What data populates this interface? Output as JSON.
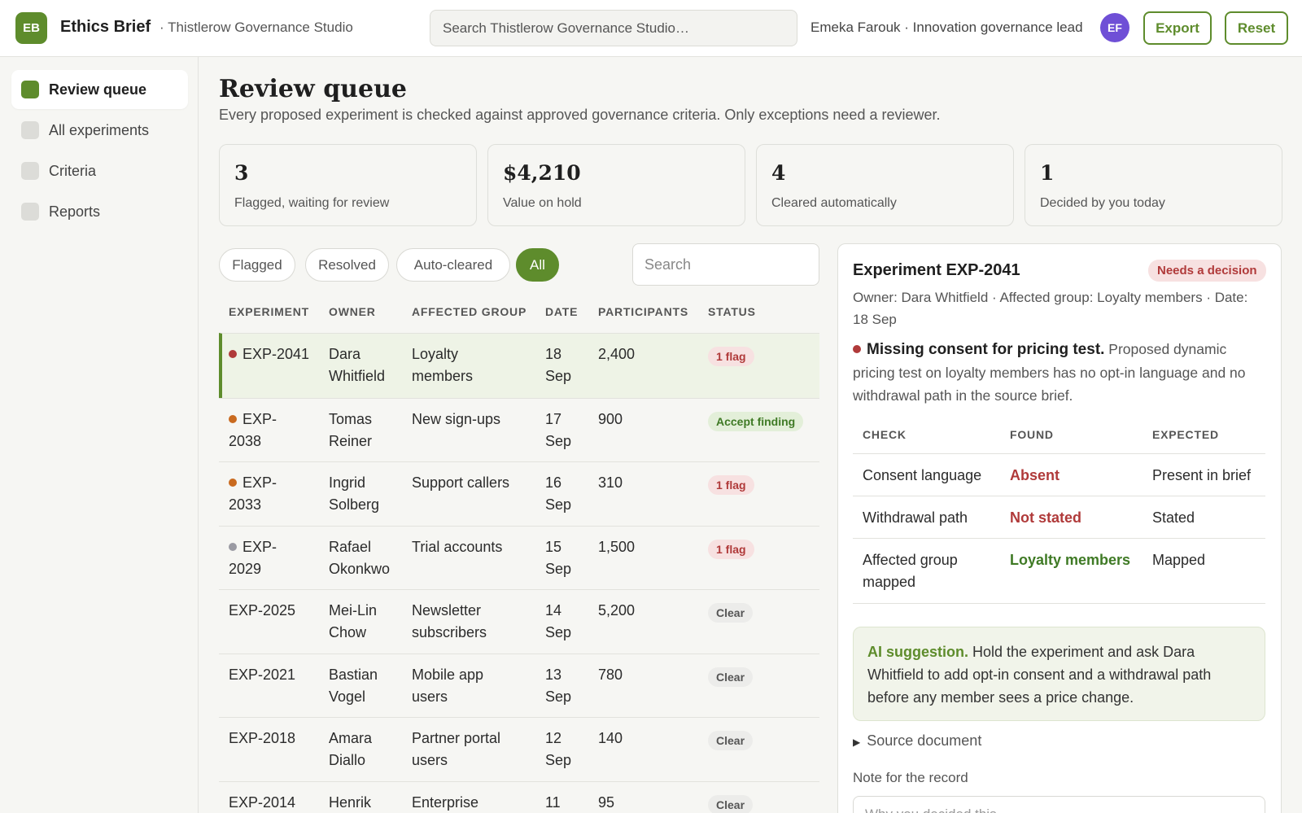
{
  "header": {
    "logo_initials": "EB",
    "app_name": "Ethics Brief",
    "workspace": "· Thistlerow Governance Studio",
    "search_placeholder": "Search Thistlerow Governance Studio…",
    "user_label": "Emeka Farouk · Innovation governance lead",
    "avatar_initials": "EF",
    "export_label": "Export",
    "reset_label": "Reset"
  },
  "sidebar": {
    "items": [
      {
        "label": "Review queue",
        "active": true
      },
      {
        "label": "All experiments",
        "active": false
      },
      {
        "label": "Criteria",
        "active": false
      },
      {
        "label": "Reports",
        "active": false
      }
    ]
  },
  "main": {
    "title": "Review queue",
    "subtitle": "Every proposed experiment is checked against approved governance criteria. Only exceptions need a reviewer.",
    "stats": [
      {
        "value": "3",
        "label": "Flagged, waiting for review"
      },
      {
        "value": "$4,210",
        "label": "Value on hold"
      },
      {
        "value": "4",
        "label": "Cleared automatically"
      },
      {
        "value": "1",
        "label": "Decided by you today"
      }
    ],
    "filters": [
      "Flagged",
      "Resolved",
      "Auto-cleared",
      "All"
    ],
    "active_filter": "All",
    "search_placeholder": "Search"
  },
  "table": {
    "headers": [
      "EXPERIMENT",
      "OWNER",
      "AFFECTED GROUP",
      "DATE",
      "PARTICIPANTS",
      "STATUS"
    ],
    "rows": [
      {
        "exp_line1": "EXP-2041",
        "exp_line2": "",
        "dot": "#b03a3a",
        "owner1": "Dara",
        "owner2": "Whitfield",
        "group1": "Loyalty",
        "group2": "members",
        "day": "18",
        "month": "Sep",
        "participants": "2,400",
        "status": "1 flag",
        "status_type": "flag",
        "selected": true
      },
      {
        "exp_line1": "EXP-",
        "exp_line2": "2038",
        "dot": "#c96a1f",
        "owner1": "Tomas",
        "owner2": "Reiner",
        "group1": "New sign-ups",
        "group2": "",
        "day": "17",
        "month": "Sep",
        "participants": "900",
        "status": "Accept finding",
        "status_type": "accept",
        "selected": false
      },
      {
        "exp_line1": "EXP-",
        "exp_line2": "2033",
        "dot": "#c96a1f",
        "owner1": "Ingrid",
        "owner2": "Solberg",
        "group1": "Support callers",
        "group2": "",
        "day": "16",
        "month": "Sep",
        "participants": "310",
        "status": "1 flag",
        "status_type": "flag",
        "selected": false
      },
      {
        "exp_line1": "EXP-",
        "exp_line2": "2029",
        "dot": "#9a9aa2",
        "owner1": "Rafael",
        "owner2": "Okonkwo",
        "group1": "Trial accounts",
        "group2": "",
        "day": "15",
        "month": "Sep",
        "participants": "1,500",
        "status": "1 flag",
        "status_type": "flag",
        "selected": false
      },
      {
        "exp_line1": "EXP-2025",
        "exp_line2": "",
        "dot": "",
        "owner1": "Mei-Lin",
        "owner2": "Chow",
        "group1": "Newsletter",
        "group2": "subscribers",
        "day": "14",
        "month": "Sep",
        "participants": "5,200",
        "status": "Clear",
        "status_type": "clear",
        "selected": false
      },
      {
        "exp_line1": "EXP-2021",
        "exp_line2": "",
        "dot": "",
        "owner1": "Bastian",
        "owner2": "Vogel",
        "group1": "Mobile app",
        "group2": "users",
        "day": "13",
        "month": "Sep",
        "participants": "780",
        "status": "Clear",
        "status_type": "clear",
        "selected": false
      },
      {
        "exp_line1": "EXP-2018",
        "exp_line2": "",
        "dot": "",
        "owner1": "Amara",
        "owner2": "Diallo",
        "group1": "Partner portal",
        "group2": "users",
        "day": "12",
        "month": "Sep",
        "participants": "140",
        "status": "Clear",
        "status_type": "clear",
        "selected": false
      },
      {
        "exp_line1": "EXP-2014",
        "exp_line2": "",
        "dot": "",
        "owner1": "Henrik",
        "owner2": "",
        "group1": "Enterprise",
        "group2": "",
        "day": "11",
        "month": "",
        "participants": "95",
        "status": "Clear",
        "status_type": "clear",
        "selected": false
      }
    ]
  },
  "detail": {
    "title": "Experiment EXP-2041",
    "badge": "Needs a decision",
    "meta": "Owner: Dara Whitfield · Affected group: Loyalty members · Date: 18 Sep",
    "issue_title": "Missing consent for pricing test.",
    "issue_body": " Proposed dynamic pricing test on loyalty members has no opt-in language and no withdrawal path in the source brief.",
    "issue_dot_color": "#b03a3a",
    "check_headers": [
      "CHECK",
      "FOUND",
      "EXPECTED"
    ],
    "checks": [
      {
        "check": "Consent language",
        "found": "Absent",
        "found_type": "bad",
        "expected": "Present in brief"
      },
      {
        "check": "Withdrawal path",
        "found": "Not stated",
        "found_type": "bad",
        "expected": "Stated"
      },
      {
        "check": "Affected group mapped",
        "found": "Loyalty members",
        "found_type": "good",
        "expected": "Mapped"
      }
    ],
    "ai_label": "AI suggestion.",
    "ai_text": " Hold the experiment and ask Dara Whitfield to add opt-in consent and a withdrawal path before any member sees a price change.",
    "source_label": "Source document",
    "note_label": "Note for the record",
    "note_placeholder": "Why you decided this…"
  },
  "colors": {
    "accent": "#5e8c2c",
    "danger": "#b03a3a",
    "warning": "#c96a1f",
    "avatar": "#6f4fd6"
  }
}
